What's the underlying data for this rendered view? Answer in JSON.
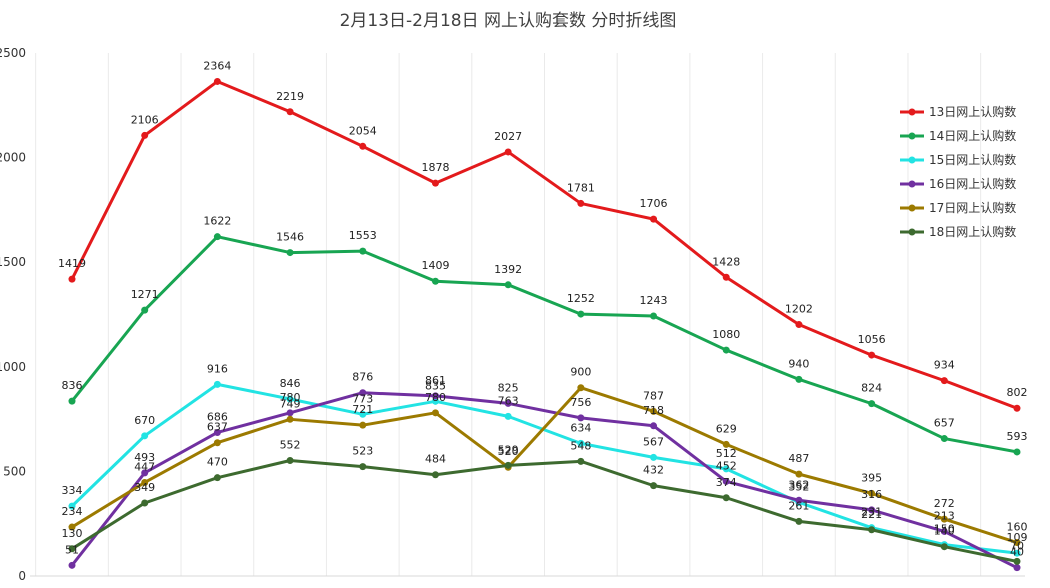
{
  "chart_data": {
    "type": "line",
    "title": "2月13日-2月18日 网上认购套数 分时折线图",
    "xlabel": "",
    "ylabel": "",
    "ylim": [
      0,
      2500
    ],
    "yticks": [
      0,
      500,
      1000,
      1500,
      2000,
      2500
    ],
    "x": [
      1,
      2,
      3,
      4,
      5,
      6,
      7,
      8,
      9,
      10,
      11,
      12,
      13,
      14
    ],
    "grid": "vertical",
    "legend_position": "top-right",
    "series": [
      {
        "name": "13日网上认购数",
        "color": "#e31a1c",
        "values": [
          1419,
          2106,
          2364,
          2219,
          2054,
          1878,
          2027,
          1781,
          1706,
          1428,
          1202,
          1056,
          934,
          802
        ]
      },
      {
        "name": "14日网上认购数",
        "color": "#18a552",
        "values": [
          836,
          1271,
          1622,
          1546,
          1553,
          1409,
          1392,
          1252,
          1243,
          1080,
          940,
          824,
          657,
          593
        ]
      },
      {
        "name": "15日网上认购数",
        "color": "#22e3e3",
        "values": [
          334,
          670,
          916,
          846,
          773,
          835,
          763,
          634,
          567,
          512,
          352,
          231,
          150,
          109
        ]
      },
      {
        "name": "16日网上认购数",
        "color": "#7030a0",
        "values": [
          51,
          493,
          686,
          780,
          876,
          861,
          825,
          756,
          718,
          452,
          362,
          316,
          213,
          40
        ]
      },
      {
        "name": "17日网上认购数",
        "color": "#9c7a00",
        "values": [
          234,
          447,
          637,
          749,
          721,
          780,
          520,
          900,
          787,
          629,
          487,
          395,
          272,
          160
        ]
      },
      {
        "name": "18日网上认购数",
        "color": "#3d6a2f",
        "values": [
          130,
          349,
          470,
          552,
          523,
          484,
          529,
          548,
          432,
          374,
          261,
          221,
          140,
          70
        ]
      }
    ]
  }
}
